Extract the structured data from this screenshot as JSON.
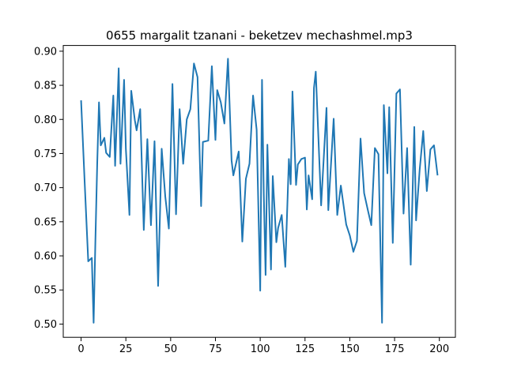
{
  "chart_data": {
    "type": "line",
    "title": "0655 margalit tzanani - beketzev mechashmel.mp3",
    "xlabel": "",
    "ylabel": "",
    "xlim": [
      -9.95,
      208.95
    ],
    "ylim": [
      0.4806,
      0.9084
    ],
    "xticks": [
      0,
      25,
      50,
      75,
      100,
      125,
      150,
      175,
      200
    ],
    "yticks": [
      0.5,
      0.55,
      0.6,
      0.65,
      0.7,
      0.75,
      0.8,
      0.85,
      0.9
    ],
    "xtick_labels": [
      "0",
      "25",
      "50",
      "75",
      "100",
      "125",
      "150",
      "175",
      "200"
    ],
    "ytick_labels": [
      "0.50",
      "0.55",
      "0.60",
      "0.65",
      "0.70",
      "0.75",
      "0.80",
      "0.85",
      "0.90"
    ],
    "grid": false,
    "line_color": "#1f77b4",
    "series": [
      {
        "x": [
          0,
          2,
          4,
          6,
          7,
          8,
          9,
          10,
          11,
          13,
          14,
          16,
          18,
          19,
          21,
          22,
          24,
          25,
          27,
          28,
          30,
          31,
          33,
          35,
          37,
          39,
          41,
          43,
          45,
          47,
          49,
          51,
          53,
          55,
          57,
          59,
          61,
          63,
          65,
          67,
          68,
          71,
          73,
          75,
          76,
          78,
          80,
          82,
          84,
          85,
          88,
          90,
          92,
          94,
          96,
          98,
          100,
          101,
          102,
          103,
          104,
          106,
          107,
          109,
          110,
          112,
          114,
          116,
          117,
          118,
          120,
          121,
          123,
          125,
          126,
          127,
          129,
          130,
          131,
          134,
          137,
          138,
          141,
          143,
          145,
          148,
          150,
          152,
          154,
          156,
          158,
          160,
          162,
          164,
          166,
          168,
          169,
          171,
          172,
          174,
          176,
          178,
          180,
          182,
          184,
          186,
          187,
          189,
          191,
          193,
          195,
          197,
          199
        ],
        "y": [
          0.828,
          0.708,
          0.592,
          0.597,
          0.502,
          0.623,
          0.734,
          0.825,
          0.762,
          0.773,
          0.751,
          0.745,
          0.835,
          0.732,
          0.875,
          0.735,
          0.858,
          0.757,
          0.66,
          0.842,
          0.799,
          0.784,
          0.815,
          0.638,
          0.771,
          0.645,
          0.768,
          0.556,
          0.757,
          0.687,
          0.64,
          0.852,
          0.661,
          0.815,
          0.735,
          0.8,
          0.815,
          0.882,
          0.862,
          0.673,
          0.767,
          0.769,
          0.878,
          0.77,
          0.843,
          0.825,
          0.794,
          0.889,
          0.74,
          0.718,
          0.753,
          0.621,
          0.713,
          0.735,
          0.835,
          0.785,
          0.549,
          0.858,
          0.69,
          0.572,
          0.763,
          0.58,
          0.717,
          0.62,
          0.641,
          0.66,
          0.584,
          0.742,
          0.705,
          0.841,
          0.704,
          0.734,
          0.742,
          0.744,
          0.668,
          0.718,
          0.683,
          0.846,
          0.87,
          0.674,
          0.817,
          0.667,
          0.801,
          0.66,
          0.703,
          0.646,
          0.63,
          0.606,
          0.622,
          0.772,
          0.692,
          0.668,
          0.645,
          0.758,
          0.749,
          0.502,
          0.821,
          0.721,
          0.818,
          0.619,
          0.838,
          0.844,
          0.662,
          0.758,
          0.587,
          0.789,
          0.652,
          0.726,
          0.783,
          0.695,
          0.756,
          0.762,
          0.718
        ]
      }
    ]
  }
}
